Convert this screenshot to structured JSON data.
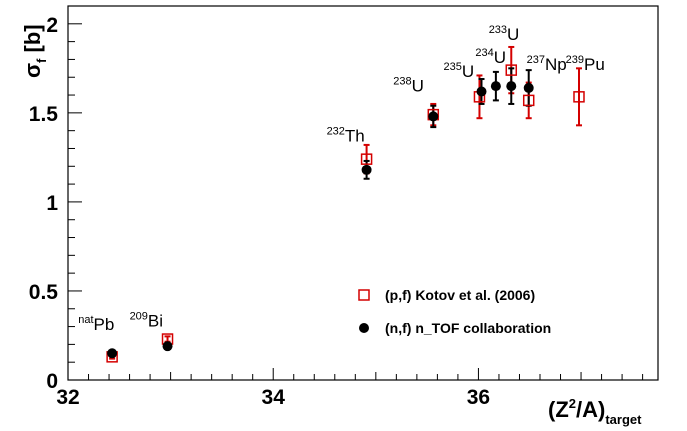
{
  "chart_data": {
    "type": "scatter",
    "xlabel": {
      "main": "(Z",
      "sup": "2",
      "mid": "/A)",
      "sub": "target"
    },
    "ylabel": {
      "main": "σ",
      "sub": "f",
      "rest": " [b]"
    },
    "xlim": [
      32,
      37.75
    ],
    "ylim": [
      0,
      2.1
    ],
    "xticks": [
      {
        "value": 32,
        "label": "32"
      },
      {
        "value": 34,
        "label": "34"
      },
      {
        "value": 36,
        "label": "36"
      }
    ],
    "yticks": [
      {
        "value": 0,
        "label": "0"
      },
      {
        "value": 0.5,
        "label": "0.5"
      },
      {
        "value": 1,
        "label": "1"
      },
      {
        "value": 1.5,
        "label": "1.5"
      },
      {
        "value": 2,
        "label": "2"
      }
    ],
    "series": [
      {
        "name": "(p,f) Kotov et al. (2006)",
        "marker": "open-square",
        "color": "#d40000",
        "points": [
          {
            "x": 32.43,
            "y": 0.13,
            "err": 0.01
          },
          {
            "x": 32.97,
            "y": 0.23,
            "err": 0.015
          },
          {
            "x": 34.91,
            "y": 1.24,
            "err": 0.08
          },
          {
            "x": 35.56,
            "y": 1.49,
            "err": 0.06
          },
          {
            "x": 36.01,
            "y": 1.59,
            "err": 0.12
          },
          {
            "x": 36.32,
            "y": 1.74,
            "err": 0.13
          },
          {
            "x": 36.49,
            "y": 1.57,
            "err": 0.1
          },
          {
            "x": 36.98,
            "y": 1.59,
            "err": 0.16
          }
        ]
      },
      {
        "name": "(n,f) n_TOF collaboration",
        "marker": "filled-circle",
        "color": "#000000",
        "points": [
          {
            "x": 32.43,
            "y": 0.15,
            "err": 0.008
          },
          {
            "x": 32.97,
            "y": 0.19,
            "err": 0.01
          },
          {
            "x": 34.91,
            "y": 1.18,
            "err": 0.05
          },
          {
            "x": 35.56,
            "y": 1.48,
            "err": 0.06
          },
          {
            "x": 36.03,
            "y": 1.62,
            "err": 0.07
          },
          {
            "x": 36.17,
            "y": 1.65,
            "err": 0.08
          },
          {
            "x": 36.32,
            "y": 1.65,
            "err": 0.1
          },
          {
            "x": 36.49,
            "y": 1.64,
            "err": 0.1
          }
        ]
      }
    ],
    "annotations": [
      {
        "sup": "nat",
        "text": "Pb",
        "x": 32.1,
        "y": 0.28
      },
      {
        "sup": "209",
        "text": "Bi",
        "x": 32.6,
        "y": 0.3
      },
      {
        "sup": "232",
        "text": "Th",
        "x": 34.52,
        "y": 1.34
      },
      {
        "sup": "238",
        "text": "U",
        "x": 35.17,
        "y": 1.62
      },
      {
        "sup": "235",
        "text": "U",
        "x": 35.66,
        "y": 1.7
      },
      {
        "sup": "234",
        "text": "U",
        "x": 35.97,
        "y": 1.78
      },
      {
        "sup": "233",
        "text": "U",
        "x": 36.1,
        "y": 1.91
      },
      {
        "sup": "237",
        "text": "Np",
        "x": 36.47,
        "y": 1.74
      },
      {
        "sup": "239",
        "text": "Pu",
        "x": 36.85,
        "y": 1.74
      }
    ],
    "legend": {
      "position": "lower-right"
    }
  }
}
